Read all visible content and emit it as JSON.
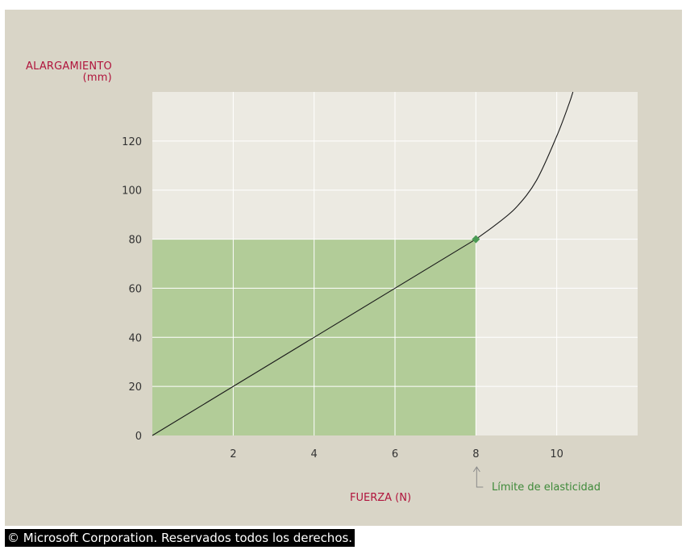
{
  "chart_data": {
    "type": "line",
    "ylabel_line1": "ALARGAMIENTO",
    "ylabel_line2": "(mm)",
    "xlabel": "FUERZA (N)",
    "xlim": [
      0,
      12
    ],
    "ylim": [
      0,
      140
    ],
    "x_ticks": [
      2,
      4,
      6,
      8,
      10
    ],
    "y_ticks": [
      0,
      20,
      40,
      60,
      80,
      100,
      120
    ],
    "grid": true,
    "series": [
      {
        "values": [
          [
            0,
            0
          ],
          [
            2,
            20
          ],
          [
            4,
            40
          ],
          [
            6,
            60
          ],
          [
            8,
            80
          ]
        ]
      },
      {
        "values": [
          [
            8,
            80
          ],
          [
            8.5,
            86
          ],
          [
            9,
            93
          ],
          [
            9.5,
            104
          ],
          [
            10,
            122
          ],
          [
            10.3,
            135
          ],
          [
            10.4,
            140
          ]
        ]
      }
    ],
    "elastic_region": {
      "x_max": 8,
      "y_max": 80
    },
    "annotation": {
      "text": "Límite de elasticidad",
      "x": 8,
      "y": 80
    },
    "colors": {
      "plot_bg": "#eceae2",
      "panel_bg": "#d9d5c7",
      "elastic_fill": "#b2cc98",
      "grid": "#ffffff",
      "curve": "#1a1a1a",
      "marker": "#4a9a54",
      "axis_label": "#b0143c",
      "annotation": "#3f8a3a"
    }
  },
  "footer": {
    "copyright": "© Microsoft Corporation. Reservados todos los derechos."
  }
}
